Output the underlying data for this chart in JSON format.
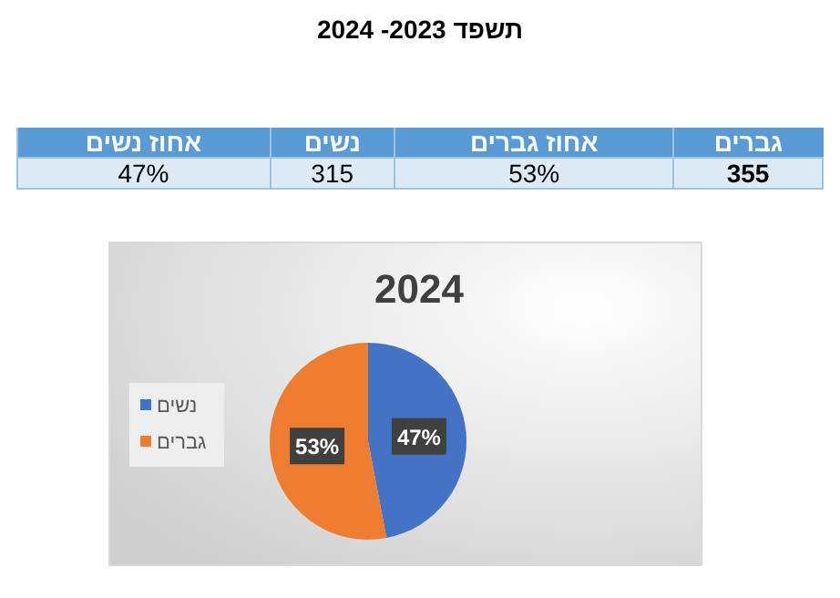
{
  "chart_data": [
    {
      "type": "other",
      "title": "תשפד 2023- 2024",
      "annotations": [
        "גברים",
        "אחוז גברים",
        "נשים",
        "אחוז נשים",
        "355",
        "53%",
        "315",
        "47%"
      ]
    },
    {
      "type": "pie",
      "title": "2024",
      "categories": [
        "נשים",
        "גברים"
      ],
      "values": [
        47,
        53
      ],
      "colors": [
        "#4472c4",
        "#ed7d31"
      ],
      "value_labels": [
        "47%",
        "53%"
      ],
      "legend": "left"
    }
  ]
}
